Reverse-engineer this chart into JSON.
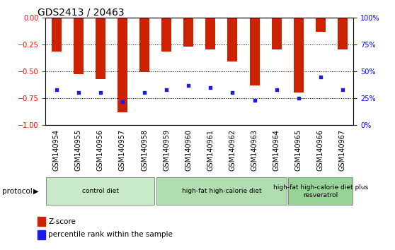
{
  "title": "GDS2413 / 20463",
  "samples": [
    "GSM140954",
    "GSM140955",
    "GSM140956",
    "GSM140957",
    "GSM140958",
    "GSM140959",
    "GSM140960",
    "GSM140961",
    "GSM140962",
    "GSM140963",
    "GSM140964",
    "GSM140965",
    "GSM140966",
    "GSM140967"
  ],
  "z_scores": [
    -0.32,
    -0.53,
    -0.57,
    -0.88,
    -0.51,
    -0.32,
    -0.27,
    -0.3,
    -0.41,
    -0.63,
    -0.3,
    -0.7,
    -0.13,
    -0.3
  ],
  "percentile_ranks": [
    33,
    30,
    30,
    22,
    30,
    33,
    37,
    35,
    30,
    23,
    33,
    25,
    45,
    33
  ],
  "bar_color": "#cc2200",
  "dot_color": "#1a1aee",
  "groups": [
    {
      "label": "control diet",
      "start": 0,
      "end": 5,
      "color": "#c8eac8"
    },
    {
      "label": "high-fat high-calorie diet",
      "start": 5,
      "end": 11,
      "color": "#b0deb0"
    },
    {
      "label": "high-fat high-calorie diet plus\nresveratrol",
      "start": 11,
      "end": 14,
      "color": "#98d498"
    }
  ],
  "protocol_label": "protocol",
  "ylim_left": [
    -1.0,
    0.0
  ],
  "ylim_right": [
    0,
    100
  ],
  "yticks_left": [
    0.0,
    -0.25,
    -0.5,
    -0.75,
    -1.0
  ],
  "yticks_right": [
    0,
    25,
    50,
    75,
    100
  ],
  "background_color": "#ffffff",
  "label_area_color": "#d8d8d8",
  "legend_zscore": "Z-score",
  "legend_prank": "percentile rank within the sample",
  "title_fontsize": 10,
  "tick_fontsize": 7,
  "bar_width": 0.45
}
